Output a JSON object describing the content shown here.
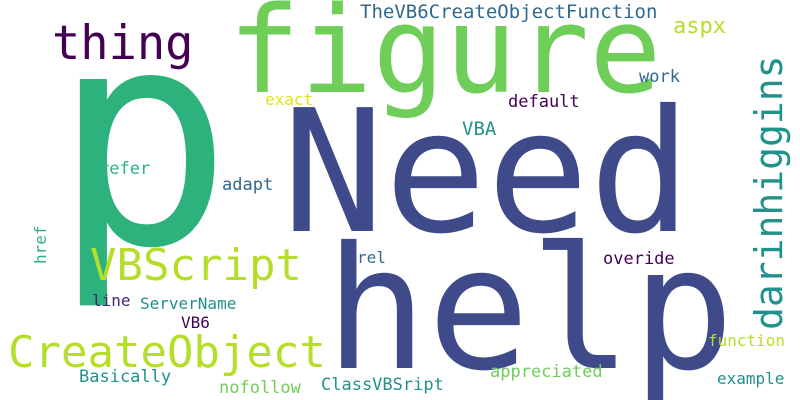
{
  "palette": {
    "indigo": "#3E4A89",
    "green": "#2DB27D",
    "lightgreen": "#6ECE58",
    "lime": "#B5DE2B",
    "teal": "#21918C",
    "blue": "#31688E",
    "purple": "#482677",
    "darkpurple": "#440154",
    "yellow": "#E3E418"
  },
  "words": {
    "p": "p",
    "need": "Need",
    "help": "help",
    "figure": "figure",
    "thing": "thing",
    "vbscript": "VBScript",
    "createobject": "CreateObject",
    "darinhiggins": "darinhiggins",
    "thevb6": "TheVB6CreateObjectFunction",
    "aspx": "aspx",
    "work": "work",
    "exact": "exact",
    "default": "default",
    "vba": "VBA",
    "refer": "refer",
    "adapt": "adapt",
    "href": "href",
    "rel": "rel",
    "overide": "overide",
    "line": "line",
    "servername": "ServerName",
    "vb6": "VB6",
    "function": "function",
    "basically": "Basically",
    "appreciated": "appreciated",
    "example": "example",
    "nofollow": "nofollow",
    "classvbsript": "ClassVBSript"
  }
}
